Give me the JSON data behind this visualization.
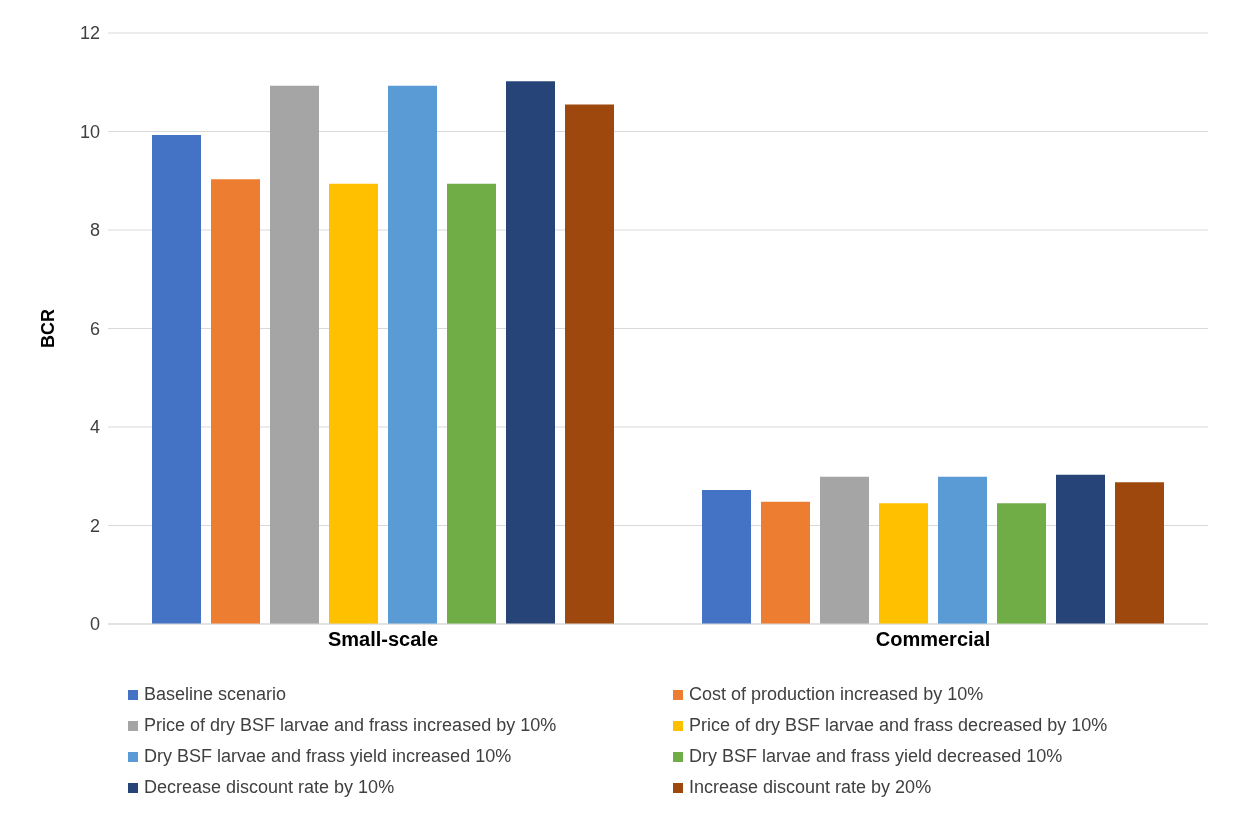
{
  "chart_data": {
    "type": "bar",
    "ylabel": "BCR",
    "categories": [
      "Small-scale",
      "Commercial"
    ],
    "series": [
      {
        "name": "Baseline scenario",
        "color": "#4472c4",
        "values": [
          9.93,
          2.72
        ]
      },
      {
        "name": "Cost of production increased by 10%",
        "color": "#ed7d31",
        "values": [
          9.03,
          2.48
        ]
      },
      {
        "name": "Price of dry BSF larvae and frass increased by 10%",
        "color": "#a5a5a5",
        "values": [
          10.93,
          2.99
        ]
      },
      {
        "name": "Price of dry BSF larvae and frass decreased by 10%",
        "color": "#ffc000",
        "values": [
          8.94,
          2.45
        ]
      },
      {
        "name": "Dry BSF larvae and frass yield increased 10%",
        "color": "#5b9bd5",
        "values": [
          10.93,
          2.99
        ]
      },
      {
        "name": "Dry BSF larvae and frass yield decreased 10%",
        "color": "#70ad47",
        "values": [
          8.94,
          2.45
        ]
      },
      {
        "name": "Decrease discount rate by 10%",
        "color": "#264478",
        "values": [
          11.02,
          3.03
        ]
      },
      {
        "name": "Increase discount rate by 20%",
        "color": "#9e480e",
        "values": [
          10.55,
          2.88
        ]
      }
    ],
    "ylim": [
      0,
      12
    ],
    "yticks": [
      0,
      2,
      4,
      6,
      8,
      10,
      12
    ],
    "grid": "y",
    "legend": "bottom"
  }
}
